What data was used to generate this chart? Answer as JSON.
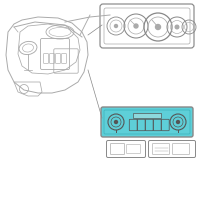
{
  "bg_color": "#ffffff",
  "line_color": "#aaaaaa",
  "line_color2": "#888888",
  "highlight_color": "#5ecfd8",
  "dark_line": "#555555",
  "fig_size": [
    2.0,
    2.0
  ],
  "dpi": 100
}
